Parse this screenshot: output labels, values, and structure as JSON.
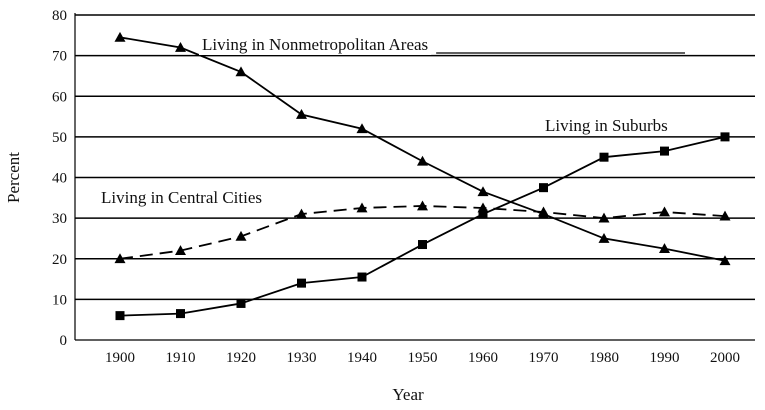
{
  "chart_data": {
    "type": "line",
    "title": "",
    "xlabel": "Year",
    "ylabel": "Percent",
    "x": [
      1900,
      1910,
      1920,
      1930,
      1940,
      1950,
      1960,
      1970,
      1980,
      1990,
      2000
    ],
    "xticks": [
      "1900",
      "1910",
      "1920",
      "1930",
      "1940",
      "1950",
      "1960",
      "1970",
      "1980",
      "1990",
      "2000"
    ],
    "yticks": [
      "0",
      "10",
      "20",
      "30",
      "40",
      "50",
      "60",
      "70",
      "80"
    ],
    "ylim": [
      0,
      80
    ],
    "grid": "horizontal",
    "series": [
      {
        "name": "Living in Nonmetropolitan Areas",
        "values": [
          74.5,
          72,
          66,
          55.5,
          52,
          44,
          36.5,
          31,
          25,
          22.5,
          19.5
        ],
        "marker": "triangle",
        "dash": "solid"
      },
      {
        "name": "Living in Suburbs",
        "values": [
          6,
          6.5,
          9,
          14,
          15.5,
          23.5,
          31,
          37.5,
          45,
          46.5,
          50
        ],
        "marker": "square",
        "dash": "solid"
      },
      {
        "name": "Living in Central Cities",
        "values": [
          20,
          22,
          25.5,
          31,
          32.5,
          33,
          32.5,
          31.5,
          30,
          31.5,
          30.5
        ],
        "marker": "triangle",
        "dash": "dashed"
      }
    ]
  }
}
